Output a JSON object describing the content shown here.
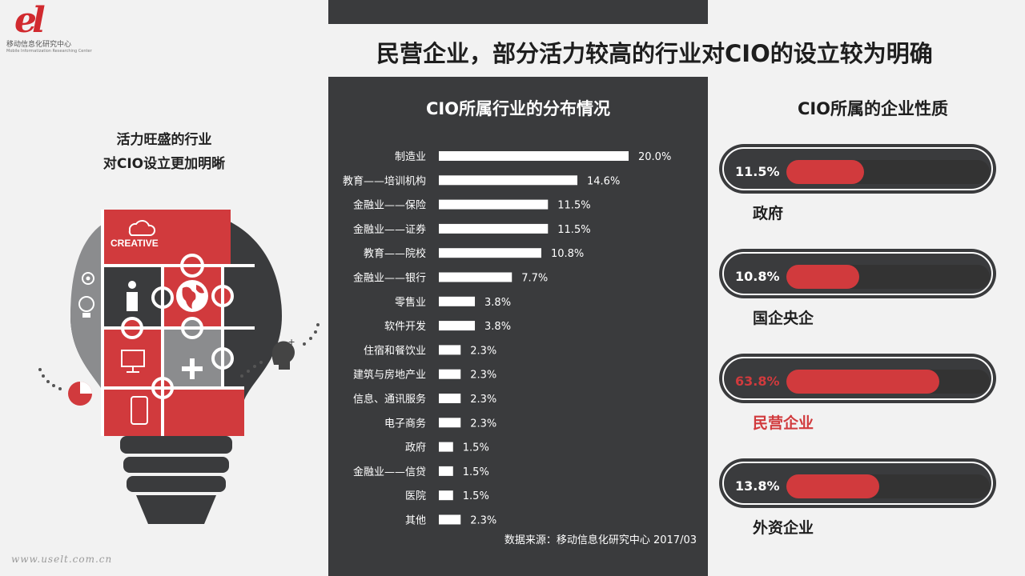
{
  "logo": {
    "mark": "el",
    "cn": "移动信息化研究中心",
    "en": "Mobile Informatization Researching Center"
  },
  "headline": "民营企业，部分活力较高的行业对CIO的设立较为明确",
  "left_caption": {
    "line1": "活力旺盛的行业",
    "line2": "对CIO设立更加明晰"
  },
  "bulb": {
    "creative_label": "CREATIVE",
    "icons": [
      "cloud-icon",
      "gear-icon",
      "lightbulb-icon",
      "person-icon",
      "globe-icon",
      "monitor-icon",
      "plus-icon",
      "phone-icon",
      "pie-chart-icon",
      "head-icon"
    ],
    "accent": "#d13a3d"
  },
  "watermark": "www.uselt.com.cn",
  "chart_data": {
    "type": "bar",
    "orientation": "horizontal",
    "title": "CIO所属行业的分布情况",
    "categories": [
      "制造业",
      "教育——培训机构",
      "金融业——保险",
      "金融业——证券",
      "教育——院校",
      "金融业——银行",
      "零售业",
      "软件开发",
      "住宿和餐饮业",
      "建筑与房地产业",
      "信息、通讯服务",
      "电子商务",
      "政府",
      "金融业——信贷",
      "医院",
      "其他"
    ],
    "values": [
      20.0,
      14.6,
      11.5,
      11.5,
      10.8,
      7.7,
      3.8,
      3.8,
      2.3,
      2.3,
      2.3,
      2.3,
      1.5,
      1.5,
      1.5,
      2.3
    ],
    "labels": [
      "20.0%",
      "14.6%",
      "11.5%",
      "11.5%",
      "10.8%",
      "7.7%",
      "3.8%",
      "3.8%",
      "2.3%",
      "2.3%",
      "2.3%",
      "2.3%",
      "1.5%",
      "1.5%",
      "1.5%",
      "2.3%"
    ],
    "xlim": [
      0,
      20
    ],
    "bar_color": "#ffffff",
    "background": "#3a3b3d"
  },
  "source": "数据来源：移动信息化研究中心 2017/03",
  "right": {
    "title": "CIO所属的企业性质",
    "items": [
      {
        "label": "政府",
        "value": 11.5,
        "value_text": "11.5%",
        "highlight": false
      },
      {
        "label": "国企央企",
        "value": 10.8,
        "value_text": "10.8%",
        "highlight": false
      },
      {
        "label": "民营企业",
        "value": 63.8,
        "value_text": "63.8%",
        "highlight": true
      },
      {
        "label": "外资企业",
        "value": 13.8,
        "value_text": "13.8%",
        "highlight": false
      }
    ],
    "fill_color": "#d13a3d"
  }
}
